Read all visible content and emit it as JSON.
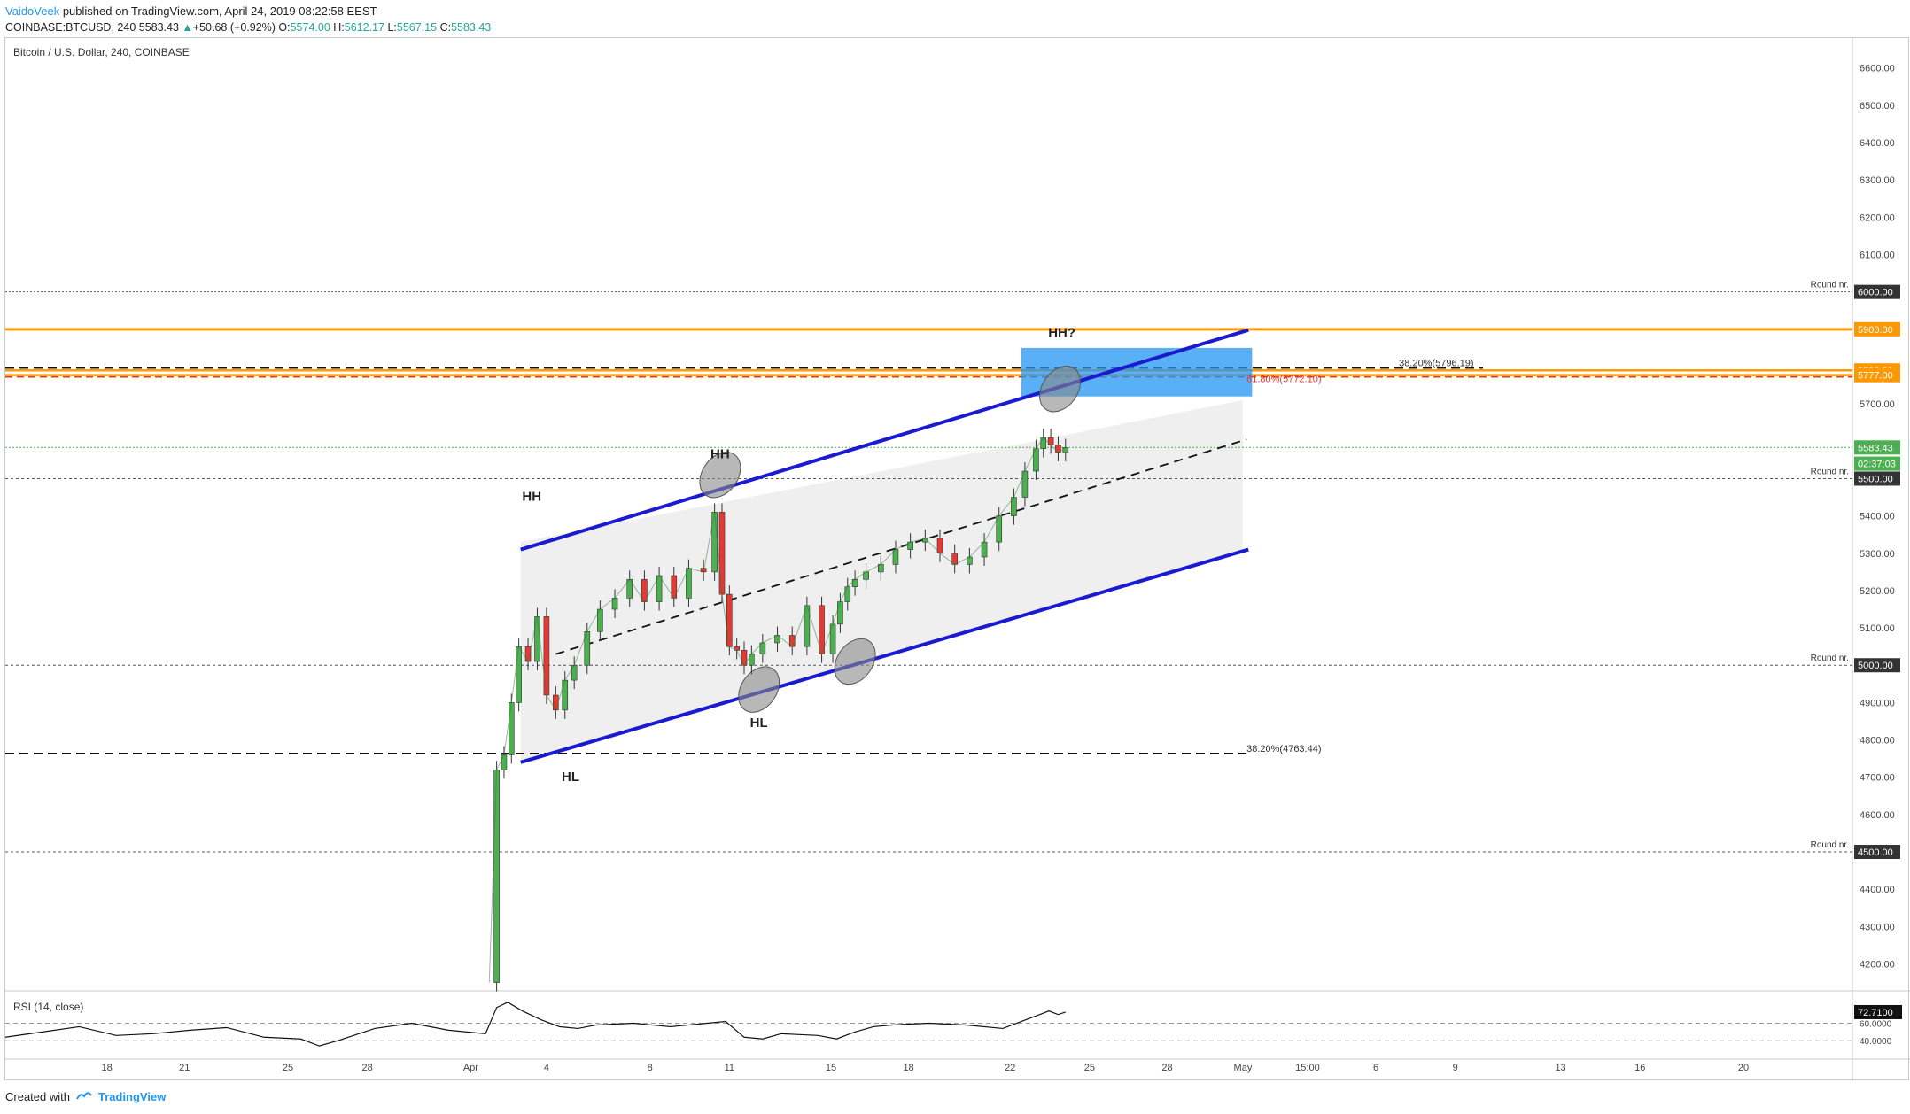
{
  "header": {
    "author": "VaidoVeek",
    "published": "published on TradingView.com, April 24, 2019 08:22:58 EEST",
    "symbol": "COINBASE:BTCUSD, 240",
    "last": "5583.43",
    "change": "+50.68 (+0.92%)",
    "o_label": "O:",
    "o": "5574.00",
    "h_label": "H:",
    "h": "5612.17",
    "l_label": "L:",
    "l": "5567.15",
    "c_label": "C:",
    "c": "5583.43"
  },
  "chart_title": "Bitcoin / U.S. Dollar, 240, COINBASE",
  "rsi_title": "RSI (14, close)",
  "footer": {
    "created": "Created with",
    "brand": "TradingView"
  },
  "colors": {
    "up": "#26a69a",
    "down": "#e53935",
    "up_body": "#4caf50",
    "channel": "#1a1ad0",
    "orange": "#ff9800",
    "zone": "#2196f3",
    "fib_red": "#e53935",
    "rsi": "#111111"
  },
  "chart_data": {
    "type": "line",
    "y_axis": {
      "min": 4130,
      "max": 6680,
      "ticks": [
        4200,
        4300,
        4400,
        4600,
        4700,
        4800,
        4900,
        5100,
        5200,
        5300,
        5400,
        5700,
        6100,
        6200,
        6300,
        6400,
        6500,
        6600
      ],
      "tick_labels": [
        "4200.00",
        "4300.00",
        "4400.00",
        "4600.00",
        "4700.00",
        "4800.00",
        "4900.00",
        "5100.00",
        "5200.00",
        "5300.00",
        "5400.00",
        "5700.00",
        "6100.00",
        "6200.00",
        "6300.00",
        "6400.00",
        "6500.00",
        "6600.00"
      ]
    },
    "x_axis": {
      "labels": [
        "18",
        "21",
        "25",
        "28",
        "Apr",
        "4",
        "8",
        "11",
        "15",
        "18",
        "22",
        "25",
        "28",
        "May",
        "15:00",
        "6",
        "9",
        "13",
        "16",
        "20"
      ]
    },
    "price_badges": [
      {
        "label": "6000.00",
        "value": 6000,
        "bg": "#333333",
        "fg": "#ffffff"
      },
      {
        "label": "5900.00",
        "value": 5900,
        "bg": "#ff9800",
        "fg": "#ffffff"
      },
      {
        "label": "5790.01",
        "value": 5790.01,
        "bg": "#ff9800",
        "fg": "#ffffff"
      },
      {
        "label": "5777.00",
        "value": 5777,
        "bg": "#ff9800",
        "fg": "#ffffff"
      },
      {
        "label": "5583.43",
        "value": 5583.43,
        "bg": "#4caf50",
        "fg": "#ffffff"
      },
      {
        "label": "02:37:03",
        "value": 5540,
        "bg": "#4caf50",
        "fg": "#ffffff"
      },
      {
        "label": "5500.00",
        "value": 5500,
        "bg": "#333333",
        "fg": "#ffffff"
      },
      {
        "label": "5000.00",
        "value": 5000,
        "bg": "#333333",
        "fg": "#ffffff"
      },
      {
        "label": "4500.00",
        "value": 4500,
        "bg": "#333333",
        "fg": "#ffffff"
      }
    ],
    "round_labels": [
      {
        "text": "Round nr.",
        "value": 6000
      },
      {
        "text": "Round nr.",
        "value": 5500
      },
      {
        "text": "Round nr.",
        "value": 5000
      },
      {
        "text": "Round nr.",
        "value": 4500
      }
    ],
    "fib_labels": [
      {
        "text": "38.20%(5796.19)",
        "value": 5796.19,
        "color": "#333333"
      },
      {
        "text": "61.80%(5772.10)",
        "value": 5772.1,
        "color": "#e53935"
      },
      {
        "text": "38.20%(4763.44)",
        "value": 4763.44,
        "color": "#333333"
      }
    ],
    "annotations": [
      {
        "text": "HH",
        "x_frac": 0.285,
        "value": 5440
      },
      {
        "text": "HH",
        "x_frac": 0.387,
        "value": 5555
      },
      {
        "text": "HH?",
        "x_frac": 0.572,
        "value": 5880
      },
      {
        "text": "HL",
        "x_frac": 0.306,
        "value": 4690
      },
      {
        "text": "HL",
        "x_frac": 0.408,
        "value": 4835
      }
    ],
    "series": [
      {
        "name": "BTCUSD",
        "x_frac": [
          0.262,
          0.266,
          0.27,
          0.274,
          0.278,
          0.283,
          0.288,
          0.293,
          0.298,
          0.303,
          0.308,
          0.315,
          0.322,
          0.33,
          0.338,
          0.346,
          0.354,
          0.362,
          0.37,
          0.378,
          0.384,
          0.388,
          0.392,
          0.396,
          0.4,
          0.404,
          0.41,
          0.418,
          0.426,
          0.434,
          0.442,
          0.448,
          0.452,
          0.456,
          0.46,
          0.466,
          0.474,
          0.482,
          0.49,
          0.498,
          0.506,
          0.514,
          0.522,
          0.53,
          0.538,
          0.546,
          0.552,
          0.558,
          0.562,
          0.566,
          0.57,
          0.574
        ],
        "values": [
          4150,
          4720,
          4760,
          4900,
          5050,
          5010,
          5130,
          4920,
          4880,
          4960,
          5000,
          5090,
          5150,
          5180,
          5230,
          5170,
          5240,
          5180,
          5260,
          5250,
          5410,
          5190,
          5050,
          5040,
          5000,
          5030,
          5060,
          5080,
          5050,
          5160,
          5030,
          5110,
          5170,
          5210,
          5230,
          5250,
          5270,
          5310,
          5330,
          5340,
          5300,
          5270,
          5290,
          5330,
          5400,
          5450,
          5520,
          5580,
          5610,
          5590,
          5570,
          5583
        ]
      },
      {
        "name": "RSI (14, close)",
        "x_frac": [
          0.0,
          0.02,
          0.04,
          0.06,
          0.08,
          0.1,
          0.12,
          0.14,
          0.16,
          0.17,
          0.18,
          0.2,
          0.22,
          0.24,
          0.26,
          0.266,
          0.272,
          0.28,
          0.29,
          0.3,
          0.31,
          0.32,
          0.34,
          0.36,
          0.38,
          0.39,
          0.4,
          0.41,
          0.42,
          0.44,
          0.45,
          0.46,
          0.47,
          0.48,
          0.5,
          0.52,
          0.54,
          0.55,
          0.56,
          0.565,
          0.57,
          0.574
        ],
        "values": [
          44,
          50,
          56,
          46,
          48,
          52,
          55,
          44,
          42,
          34,
          40,
          54,
          60,
          52,
          48,
          78,
          84,
          74,
          64,
          56,
          54,
          58,
          60,
          56,
          60,
          62,
          44,
          42,
          48,
          46,
          42,
          50,
          56,
          58,
          60,
          58,
          54,
          62,
          70,
          74,
          70,
          72.71
        ]
      }
    ],
    "rsi_axis": {
      "ticks": [
        40,
        60
      ],
      "tick_labels": [
        "40.0000",
        "60.0000"
      ],
      "current_label": "72.7100",
      "min": 25,
      "max": 95
    }
  }
}
